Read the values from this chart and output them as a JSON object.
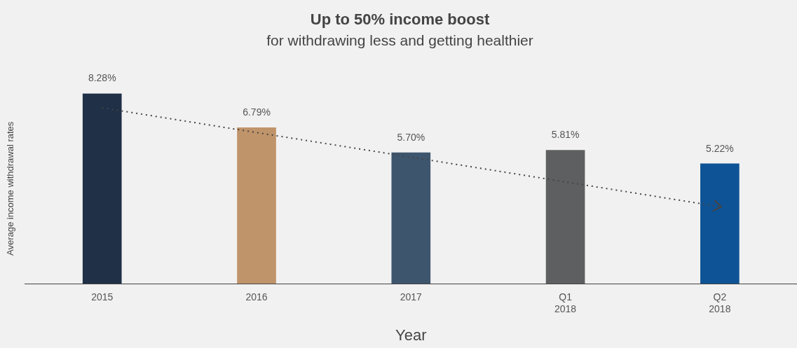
{
  "chart_data": {
    "type": "bar",
    "title": "Up to 50% income boost",
    "subtitle": "for withdrawing less and getting healthier",
    "xlabel": "Year",
    "ylabel": "Average income withdrawal rates",
    "categories": [
      "2015",
      "2016",
      "2017",
      "Q1 2018",
      "Q2 2018"
    ],
    "series": [
      {
        "values": [
          8.28,
          6.79,
          5.7,
          5.81,
          5.22
        ],
        "value_labels": [
          "8.28%",
          "6.79%",
          "5.70%",
          "5.81%",
          "5.22%"
        ],
        "colors": [
          "#1f3047",
          "#c0946a",
          "#3d566e",
          "#5e5f61",
          "#0e5396"
        ]
      },
      {
        "type": "line",
        "values": [
          7.66,
          6.58,
          5.51,
          4.43,
          3.35
        ],
        "color": "#444444",
        "line_style": "dotted",
        "marker": "none"
      }
    ],
    "grid": false,
    "legend": false
  }
}
